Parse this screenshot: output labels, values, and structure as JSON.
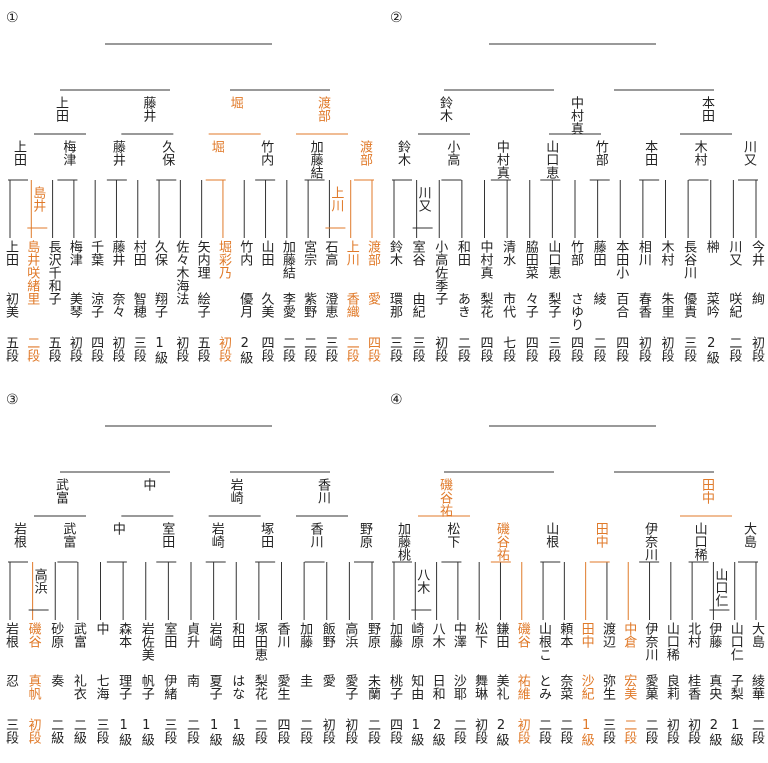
{
  "colors": {
    "line": "#333333",
    "highlight": "#e07a2a",
    "text": "#222222"
  },
  "brackets": [
    {
      "label": "①",
      "players": [
        {
          "name": "上田",
          "given": "初美",
          "rank": "五段",
          "hl": false
        },
        {
          "name": "島井咲緒",
          "given": "里",
          "rank": "二段",
          "hl": true
        },
        {
          "name": "長沢千和子",
          "given": "",
          "rank": "五段",
          "hl": false
        },
        {
          "name": "梅津",
          "given": "美琴",
          "rank": "初段",
          "hl": false
        },
        {
          "name": "千葉",
          "given": "涼子",
          "rank": "四段",
          "hl": false
        },
        {
          "name": "藤井",
          "given": "奈々",
          "rank": "初段",
          "hl": false
        },
        {
          "name": "村田",
          "given": "智穂",
          "rank": "三段",
          "hl": false
        },
        {
          "name": "久保",
          "given": "翔子",
          "rank": "1級",
          "hl": false
        },
        {
          "name": "佐々木海",
          "given": "法",
          "rank": "初段",
          "hl": false
        },
        {
          "name": "矢内理",
          "given": "絵子",
          "rank": "五段",
          "hl": false
        },
        {
          "name": "堀彩乃",
          "given": "",
          "rank": "初段",
          "hl": true
        },
        {
          "name": "竹内",
          "given": "優月",
          "rank": "2級",
          "hl": false
        },
        {
          "name": "山田",
          "given": "久美",
          "rank": "四段",
          "hl": false
        },
        {
          "name": "加藤結",
          "given": "李愛",
          "rank": "二段",
          "hl": false
        },
        {
          "name": "宮宗",
          "given": "紫野",
          "rank": "二段",
          "hl": false
        },
        {
          "name": "石高",
          "given": "澄恵",
          "rank": "三段",
          "hl": false
        },
        {
          "name": "上川",
          "given": "香織",
          "rank": "二段",
          "hl": true
        },
        {
          "name": "渡部",
          "given": "愛",
          "rank": "四段",
          "hl": true
        }
      ],
      "r1": [
        {
          "name": "島井",
          "hl": true
        },
        {
          "name": "上川",
          "hl": true
        }
      ],
      "r2": [
        {
          "name": "上田",
          "hl": false
        },
        {
          "name": "梅津",
          "hl": false
        },
        {
          "name": "藤井",
          "hl": false
        },
        {
          "name": "久保",
          "hl": false
        },
        {
          "name": "堀",
          "hl": true
        },
        {
          "name": "竹内",
          "hl": false
        },
        {
          "name": "加藤結",
          "hl": false
        },
        {
          "name": "渡部",
          "hl": true
        }
      ],
      "r3": [
        {
          "name": "上田",
          "hl": false
        },
        {
          "name": "藤井",
          "hl": false
        },
        {
          "name": "堀",
          "hl": true
        },
        {
          "name": "渡部",
          "hl": true
        }
      ]
    },
    {
      "label": "②",
      "players": [
        {
          "name": "鈴木",
          "given": "環那",
          "rank": "三段",
          "hl": false
        },
        {
          "name": "室谷",
          "given": "由紀",
          "rank": "三段",
          "hl": false
        },
        {
          "name": "小高佐季子",
          "given": "",
          "rank": "初段",
          "hl": false
        },
        {
          "name": "和田",
          "given": "あき",
          "rank": "二段",
          "hl": false
        },
        {
          "name": "中村真",
          "given": "梨花",
          "rank": "四段",
          "hl": false
        },
        {
          "name": "清水",
          "given": "市代",
          "rank": "七段",
          "hl": false
        },
        {
          "name": "脇田菜",
          "given": "々子",
          "rank": "四段",
          "hl": false
        },
        {
          "name": "山口恵",
          "given": "梨子",
          "rank": "三段",
          "hl": false
        },
        {
          "name": "竹部",
          "given": "さゆり",
          "rank": "四段",
          "hl": false
        },
        {
          "name": "藤田",
          "given": "綾",
          "rank": "二段",
          "hl": false
        },
        {
          "name": "本田小",
          "given": "百合",
          "rank": "四段",
          "hl": false
        },
        {
          "name": "相川",
          "given": "春香",
          "rank": "初段",
          "hl": false
        },
        {
          "name": "木村",
          "given": "朱里",
          "rank": "初段",
          "hl": false
        },
        {
          "name": "長谷川",
          "given": "優貴",
          "rank": "三段",
          "hl": false
        },
        {
          "name": "榊",
          "given": "菜吟",
          "rank": "2級",
          "hl": false
        },
        {
          "name": "川又",
          "given": "咲紀",
          "rank": "二段",
          "hl": false
        },
        {
          "name": "今井",
          "given": "絢",
          "rank": "初段",
          "hl": false
        }
      ],
      "r1": [
        {
          "name": "川又",
          "hl": false
        }
      ],
      "r2": [
        {
          "name": "鈴木",
          "hl": false
        },
        {
          "name": "小高",
          "hl": false
        },
        {
          "name": "中村真",
          "hl": false
        },
        {
          "name": "山口恵",
          "hl": false
        },
        {
          "name": "竹部",
          "hl": false
        },
        {
          "name": "本田",
          "hl": false
        },
        {
          "name": "木村",
          "hl": false
        },
        {
          "name": "川又",
          "hl": false
        }
      ],
      "r3": [
        {
          "name": "鈴木",
          "hl": false
        },
        {
          "name": "中村真",
          "hl": false
        },
        {
          "name": "本田",
          "hl": false
        }
      ]
    },
    {
      "label": "③",
      "players": [
        {
          "name": "岩根",
          "given": "忍",
          "rank": "三段",
          "hl": false
        },
        {
          "name": "磯谷",
          "given": "真帆",
          "rank": "初段",
          "hl": true
        },
        {
          "name": "砂原",
          "given": "奏",
          "rank": "二級",
          "hl": false
        },
        {
          "name": "武富",
          "given": "礼衣",
          "rank": "二級",
          "hl": false
        },
        {
          "name": "中",
          "given": "七海",
          "rank": "三段",
          "hl": false
        },
        {
          "name": "森本",
          "given": "理子",
          "rank": "1級",
          "hl": false
        },
        {
          "name": "岩佐美",
          "given": "帆子",
          "rank": "1級",
          "hl": false
        },
        {
          "name": "室田",
          "given": "伊緒",
          "rank": "三段",
          "hl": false
        },
        {
          "name": "貞升",
          "given": "南",
          "rank": "二段",
          "hl": false
        },
        {
          "name": "岩崎",
          "given": "夏子",
          "rank": "1級",
          "hl": false
        },
        {
          "name": "和田",
          "given": "はな",
          "rank": "1級",
          "hl": false
        },
        {
          "name": "塚田恵",
          "given": "梨花",
          "rank": "二段",
          "hl": false
        },
        {
          "name": "香川",
          "given": "愛生",
          "rank": "四段",
          "hl": false
        },
        {
          "name": "加藤",
          "given": "圭",
          "rank": "二段",
          "hl": false
        },
        {
          "name": "飯野",
          "given": "愛",
          "rank": "初段",
          "hl": false
        },
        {
          "name": "高浜",
          "given": "愛子",
          "rank": "初段",
          "hl": false
        },
        {
          "name": "野原",
          "given": "未蘭",
          "rank": "二段",
          "hl": false
        }
      ],
      "r1": [
        {
          "name": "高浜",
          "hl": false
        }
      ],
      "r2": [
        {
          "name": "岩根",
          "hl": false
        },
        {
          "name": "武富",
          "hl": false
        },
        {
          "name": "中",
          "hl": false
        },
        {
          "name": "室田",
          "hl": false
        },
        {
          "name": "岩崎",
          "hl": false
        },
        {
          "name": "塚田",
          "hl": false
        },
        {
          "name": "香川",
          "hl": false
        },
        {
          "name": "野原",
          "hl": false
        }
      ],
      "r3": [
        {
          "name": "武富",
          "hl": false
        },
        {
          "name": "中",
          "hl": false
        },
        {
          "name": "岩崎",
          "hl": false
        },
        {
          "name": "香川",
          "hl": false
        }
      ]
    },
    {
      "label": "④",
      "players": [
        {
          "name": "加藤",
          "given": "桃子",
          "rank": "四段",
          "hl": false
        },
        {
          "name": "崎原",
          "given": "知由",
          "rank": "1級",
          "hl": false
        },
        {
          "name": "八木",
          "given": "日和",
          "rank": "2級",
          "hl": false
        },
        {
          "name": "中澤",
          "given": "沙耶",
          "rank": "二段",
          "hl": false
        },
        {
          "name": "松下",
          "given": "舞琳",
          "rank": "初段",
          "hl": false
        },
        {
          "name": "鎌田",
          "given": "美礼",
          "rank": "2級",
          "hl": false
        },
        {
          "name": "磯谷",
          "given": "祐維",
          "rank": "初段",
          "hl": true
        },
        {
          "name": "山根こ",
          "given": "とみ",
          "rank": "二段",
          "hl": false
        },
        {
          "name": "頼本",
          "given": "奈菜",
          "rank": "二段",
          "hl": false
        },
        {
          "name": "田中",
          "given": "沙紀",
          "rank": "1級",
          "hl": true
        },
        {
          "name": "渡辺",
          "given": "弥生",
          "rank": "三段",
          "hl": false
        },
        {
          "name": "中倉",
          "given": "宏美",
          "rank": "二段",
          "hl": true
        },
        {
          "name": "伊奈川",
          "given": "愛菓",
          "rank": "二段",
          "hl": false
        },
        {
          "name": "山口稀",
          "given": "良莉",
          "rank": "初段",
          "hl": false
        },
        {
          "name": "北村",
          "given": "桂香",
          "rank": "初段",
          "hl": false
        },
        {
          "name": "伊藤",
          "given": "真央",
          "rank": "2級",
          "hl": false
        },
        {
          "name": "山口仁",
          "given": "子梨",
          "rank": "1級",
          "hl": false
        },
        {
          "name": "大島",
          "given": "綾華",
          "rank": "二段",
          "hl": false
        }
      ],
      "r1": [
        {
          "name": "八木",
          "hl": false
        },
        {
          "name": "山口仁",
          "hl": false
        }
      ],
      "r2": [
        {
          "name": "加藤桃",
          "hl": false
        },
        {
          "name": "松下",
          "hl": false
        },
        {
          "name": "磯谷祐",
          "hl": true
        },
        {
          "name": "山根",
          "hl": false
        },
        {
          "name": "田中",
          "hl": true
        },
        {
          "name": "伊奈川",
          "hl": false
        },
        {
          "name": "山口稀",
          "hl": false
        },
        {
          "name": "大島",
          "hl": false
        }
      ],
      "r3": [
        {
          "name": "磯谷祐",
          "hl": true
        },
        {
          "name": "田中",
          "hl": true
        }
      ]
    }
  ]
}
